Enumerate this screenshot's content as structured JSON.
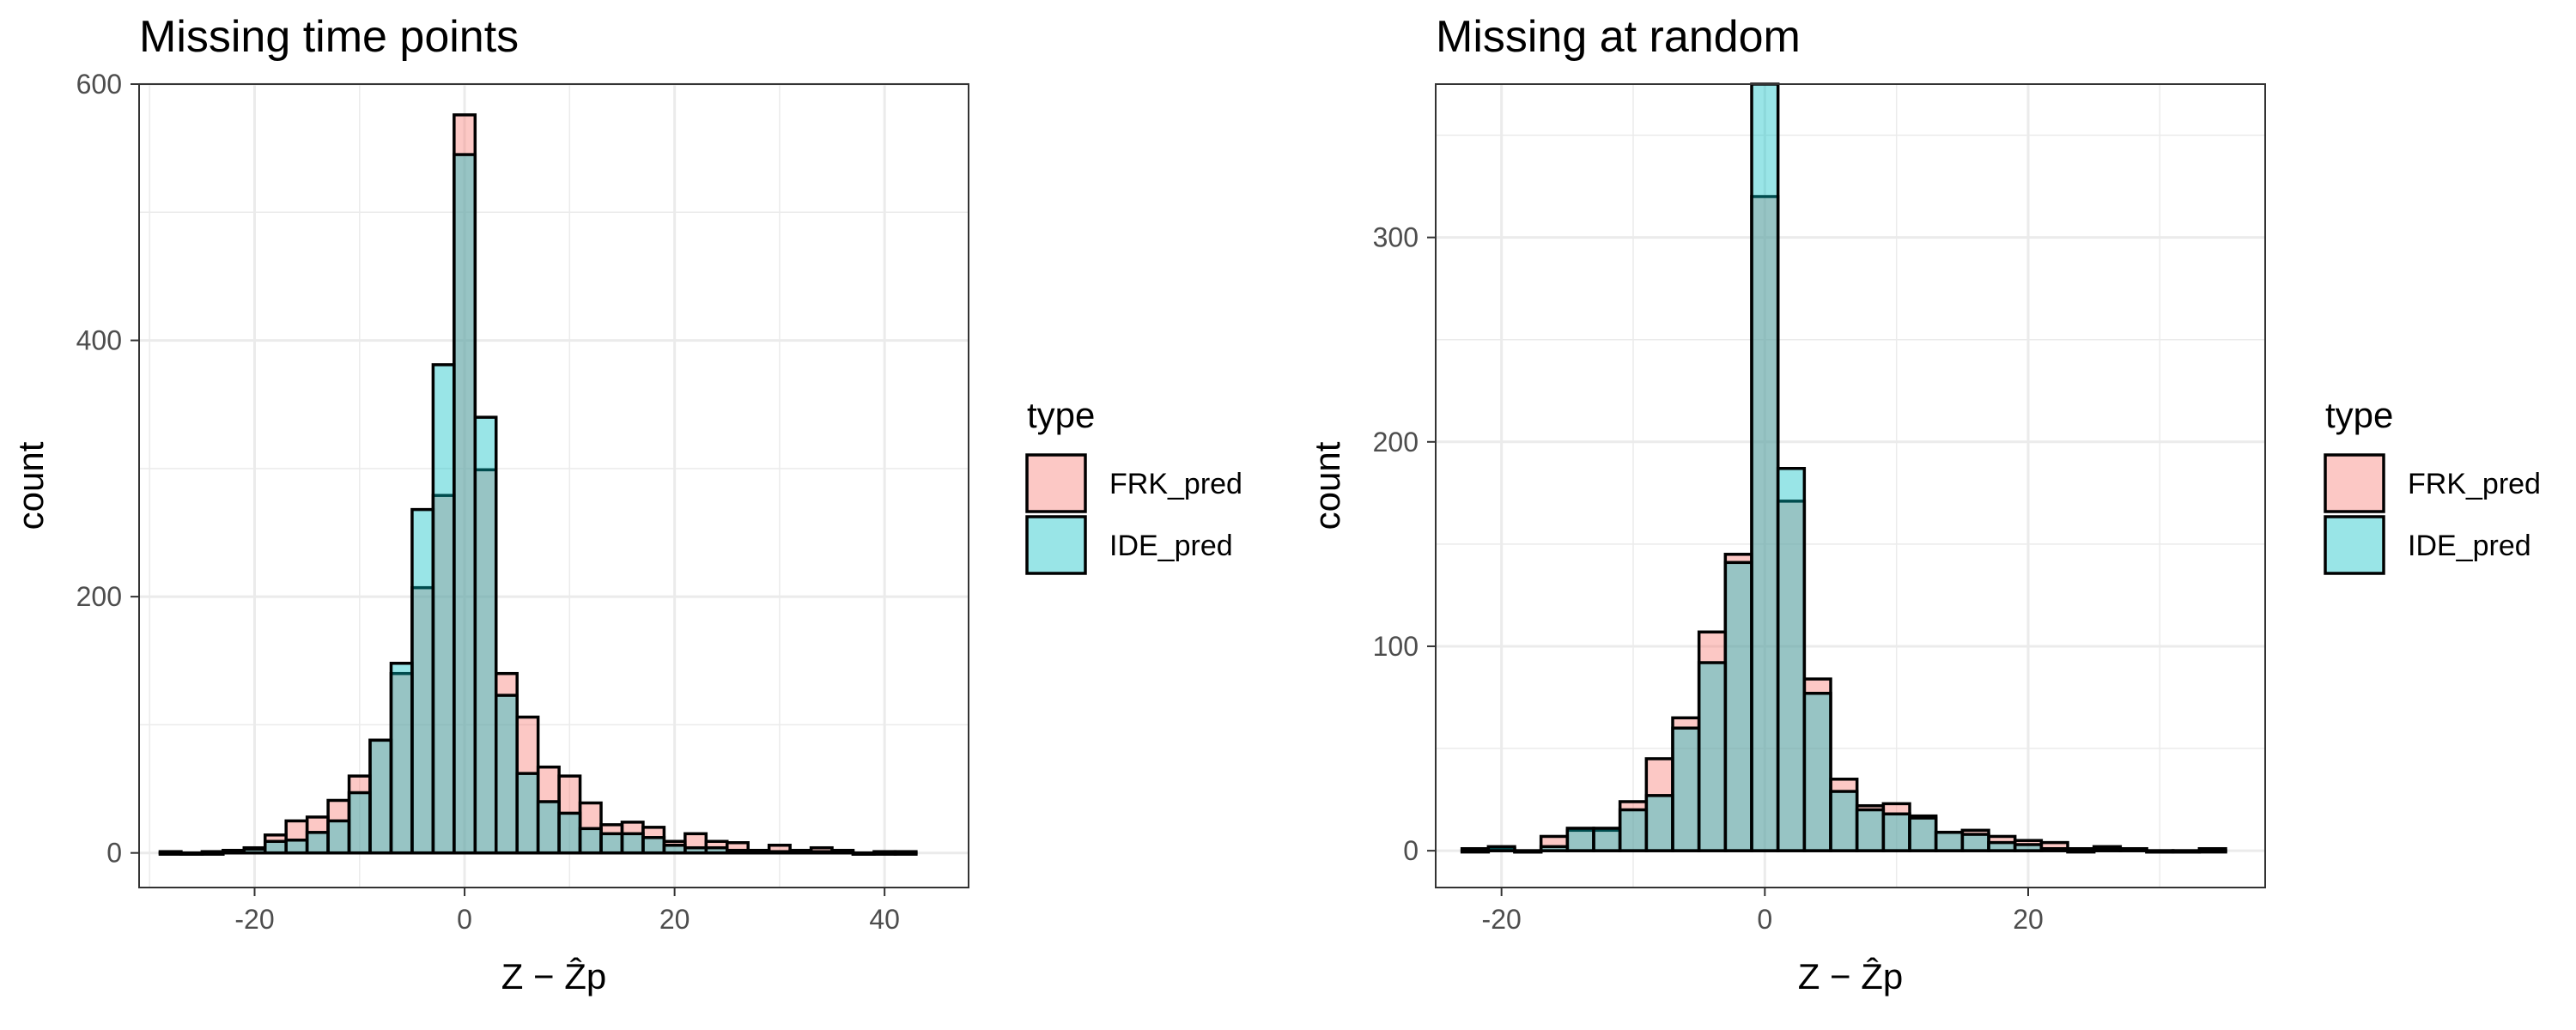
{
  "colors": {
    "FRK_pred": "#f8766d",
    "IDE_pred": "#00bfc4",
    "overlap": "#8fbcbb",
    "gridline": "#ebebeb"
  },
  "chart_data": [
    {
      "type": "bar",
      "title": "Missing time points",
      "xlabel": "Z − Ẑp",
      "ylabel": "count",
      "xlim": [
        -31,
        48
      ],
      "ylim": [
        -27,
        600
      ],
      "xticks": [
        -20,
        0,
        20,
        40
      ],
      "yticks": [
        0,
        200,
        400,
        600
      ],
      "grid": true,
      "legend": {
        "title": "type",
        "position": "right",
        "entries": [
          "FRK_pred",
          "IDE_pred"
        ]
      },
      "bin_width": 2,
      "x": [
        -28,
        -26,
        -24,
        -22,
        -20,
        -18,
        -16,
        -14,
        -12,
        -10,
        -8,
        -6,
        -4,
        -2,
        0,
        2,
        4,
        6,
        8,
        10,
        12,
        14,
        16,
        18,
        20,
        22,
        24,
        26,
        28,
        30,
        32,
        34,
        36,
        38,
        40,
        42
      ],
      "series": [
        {
          "name": "FRK_pred",
          "values": [
            0,
            0,
            0,
            1,
            4,
            14,
            25,
            28,
            41,
            60,
            88,
            140,
            207,
            279,
            576,
            299,
            140,
            106,
            67,
            60,
            39,
            22,
            24,
            20,
            9,
            15,
            9,
            8,
            2,
            6,
            2,
            4,
            2,
            0,
            0,
            0
          ]
        },
        {
          "name": "IDE_pred",
          "values": [
            1,
            0,
            1,
            2,
            3,
            9,
            10,
            16,
            25,
            47,
            88,
            148,
            268,
            381,
            545,
            340,
            123,
            62,
            40,
            31,
            19,
            15,
            15,
            12,
            6,
            4,
            4,
            2,
            1,
            1,
            1,
            1,
            1,
            0,
            1,
            1
          ]
        }
      ]
    },
    {
      "type": "bar",
      "title": "Missing at random",
      "xlabel": "Z − Ẑp",
      "ylabel": "count",
      "xlim": [
        -25,
        38
      ],
      "ylim": [
        -18,
        375
      ],
      "xticks": [
        -20,
        0,
        20
      ],
      "yticks": [
        0,
        100,
        200,
        300
      ],
      "grid": true,
      "legend": {
        "title": "type",
        "position": "right",
        "entries": [
          "FRK_pred",
          "IDE_pred"
        ]
      },
      "bin_width": 2,
      "x": [
        -22,
        -20,
        -18,
        -16,
        -14,
        -12,
        -10,
        -8,
        -6,
        -4,
        -2,
        0,
        2,
        4,
        6,
        8,
        10,
        12,
        14,
        16,
        18,
        20,
        22,
        24,
        26,
        28,
        30,
        32,
        34
      ],
      "series": [
        {
          "name": "FRK_pred",
          "values": [
            0,
            1,
            0,
            7,
            10,
            10,
            24,
            45,
            65,
            107,
            145,
            320,
            171,
            84,
            35,
            22,
            23,
            17,
            9,
            10,
            7,
            5,
            4,
            1,
            2,
            1,
            0,
            0,
            0
          ]
        },
        {
          "name": "IDE_pred",
          "values": [
            1,
            2,
            0,
            2,
            11,
            11,
            20,
            27,
            60,
            92,
            141,
            375,
            187,
            77,
            29,
            20,
            18,
            16,
            9,
            8,
            4,
            3,
            1,
            0,
            1,
            1,
            0,
            0,
            1
          ]
        }
      ]
    }
  ]
}
